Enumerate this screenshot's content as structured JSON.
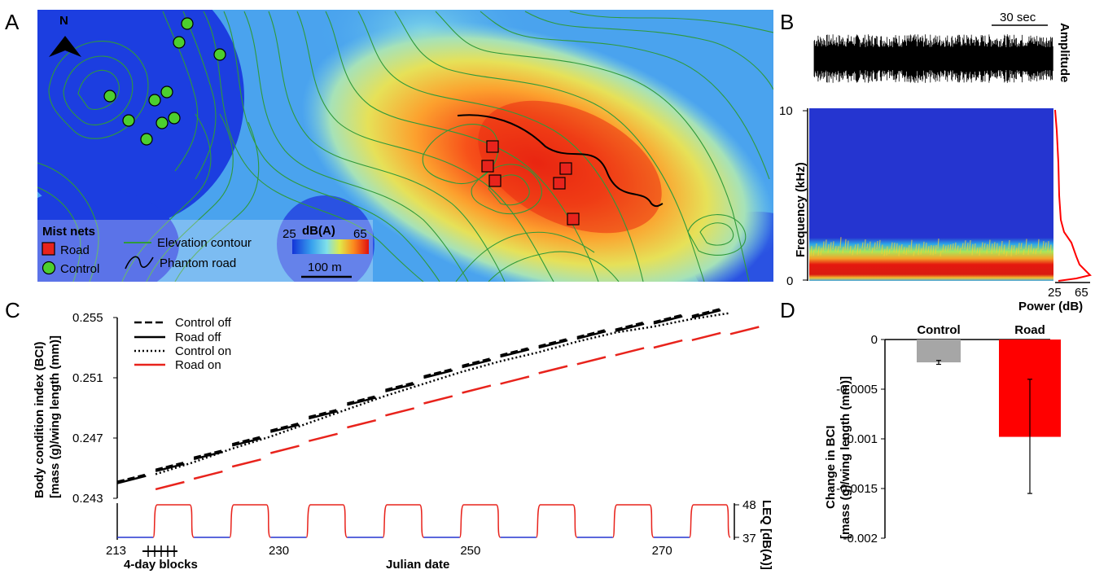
{
  "panel_labels": {
    "a": "A",
    "b": "B",
    "c": "C",
    "d": "D"
  },
  "map": {
    "north": "N",
    "legend_title": "Mist nets",
    "road_label": "Road",
    "control_label": "Control",
    "contour_label": "Elevation contour",
    "phantom_label": "Phantom road",
    "colorbar_title": "dB(A)",
    "colorbar_min": "25",
    "colorbar_max": "65",
    "scalebar": "100 m",
    "colors": {
      "road": "#e8231c",
      "control": "#4ccf2e",
      "contour": "#2f9a3a"
    }
  },
  "spectrogram": {
    "time_scale": "30 sec",
    "amplitude_label": "Amplitude",
    "freq_label": "Frequency (kHz)",
    "freq_ticks": [
      "10",
      "0"
    ],
    "power_ticks": [
      "25",
      "65"
    ],
    "power_label": "Power (dB)"
  },
  "chart_data": [
    {
      "type": "line",
      "ylabel_1": "Body condition index (BCI)",
      "ylabel_2": "[mass (g)/wing length (mm)]",
      "xlabel": "Julian date",
      "y_ticks": [
        "0.255",
        "0.251",
        "0.247",
        "0.243"
      ],
      "ylim": [
        0.243,
        0.255
      ],
      "xlim": [
        213,
        277
      ],
      "x_ticks": [
        "213",
        "230",
        "250",
        "270"
      ],
      "blocks_label": "4-day blocks",
      "right_label": "LEQ [dB(A)]",
      "right_ticks": [
        "48",
        "37"
      ],
      "leq_levels": [
        37,
        48
      ],
      "series": [
        {
          "name": "Control off",
          "style": "dashed",
          "color": "#000000",
          "segments": [
            [
              213,
              0.2441
            ],
            [
              217,
              0.2449
            ],
            [
              221,
              0.2457
            ],
            [
              225,
              0.2466
            ],
            [
              229,
              0.2475
            ],
            [
              233,
              0.2484
            ],
            [
              237,
              0.2493
            ],
            [
              241,
              0.2502
            ],
            [
              245,
              0.2511
            ],
            [
              249,
              0.2518
            ],
            [
              253,
              0.2525
            ],
            [
              257,
              0.2531
            ],
            [
              261,
              0.2537
            ],
            [
              265,
              0.2542
            ],
            [
              269,
              0.2547
            ],
            [
              273,
              0.2551
            ]
          ]
        },
        {
          "name": "Road off",
          "style": "solid",
          "color": "#000000",
          "segments": [
            [
              213,
              0.244
            ],
            [
              217,
              0.2448
            ],
            [
              221,
              0.2456
            ],
            [
              225,
              0.2465
            ],
            [
              229,
              0.2474
            ],
            [
              233,
              0.2483
            ],
            [
              237,
              0.2492
            ],
            [
              241,
              0.2501
            ],
            [
              245,
              0.251
            ],
            [
              249,
              0.2517
            ],
            [
              253,
              0.2524
            ],
            [
              257,
              0.253
            ],
            [
              261,
              0.2536
            ],
            [
              265,
              0.2541
            ],
            [
              269,
              0.2546
            ],
            [
              273,
              0.255
            ]
          ]
        },
        {
          "name": "Control on",
          "style": "dotted",
          "color": "#000000",
          "curve": [
            [
              217,
              0.2446
            ],
            [
              221,
              0.2454
            ],
            [
              225,
              0.2463
            ],
            [
              229,
              0.2471
            ],
            [
              233,
              0.248
            ],
            [
              237,
              0.2489
            ],
            [
              241,
              0.2498
            ],
            [
              245,
              0.2506
            ],
            [
              249,
              0.2514
            ],
            [
              253,
              0.2521
            ],
            [
              257,
              0.2527
            ],
            [
              261,
              0.2534
            ],
            [
              265,
              0.254
            ],
            [
              269,
              0.2544
            ],
            [
              273,
              0.2549
            ],
            [
              277,
              0.2553
            ]
          ]
        },
        {
          "name": "Road on",
          "style": "solid",
          "color": "#e8231c",
          "segments": [
            [
              217,
              0.2436
            ],
            [
              221,
              0.2443
            ],
            [
              225,
              0.2451
            ],
            [
              229,
              0.246
            ],
            [
              233,
              0.2468
            ],
            [
              237,
              0.2477
            ],
            [
              241,
              0.2485
            ],
            [
              245,
              0.2493
            ],
            [
              249,
              0.25
            ],
            [
              253,
              0.2506
            ],
            [
              257,
              0.2513
            ],
            [
              261,
              0.2519
            ],
            [
              265,
              0.2525
            ],
            [
              269,
              0.253
            ],
            [
              273,
              0.2535
            ],
            [
              277,
              0.2539
            ]
          ]
        }
      ]
    },
    {
      "type": "bar",
      "categories": [
        "Control",
        "Road"
      ],
      "values": [
        -0.00023,
        -0.00098
      ],
      "errors": [
        [
          -0.00025,
          -0.00021
        ],
        [
          -0.00155,
          -0.0004
        ]
      ],
      "colors": [
        "#a6a6a6",
        "#ff0000"
      ],
      "ylabel_1": "Change in BCI",
      "ylabel_2": "[mass (g)/wing length (mm)]",
      "ylim": [
        -0.002,
        0
      ],
      "y_ticks": [
        "0",
        "-0.0005",
        "-0.001",
        "-0.0015",
        "-0.002"
      ]
    }
  ]
}
